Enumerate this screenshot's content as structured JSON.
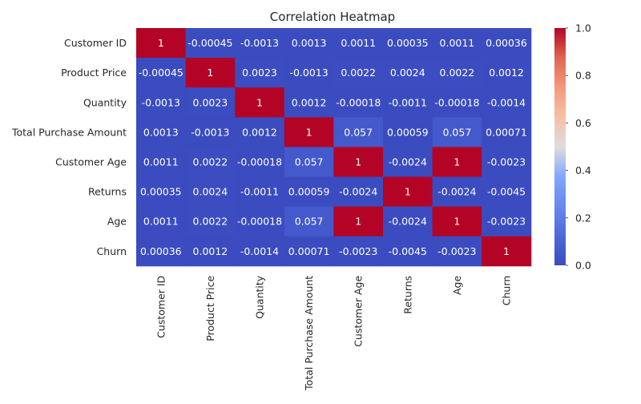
{
  "chart_data": {
    "type": "heatmap",
    "title": "Correlation Heatmap",
    "xlabel": "",
    "ylabel": "",
    "row_labels": [
      "Customer ID",
      "Product Price",
      "Quantity",
      "Total Purchase Amount",
      "Customer Age",
      "Returns",
      "Age",
      "Churn"
    ],
    "col_labels": [
      "Customer ID",
      "Product Price",
      "Quantity",
      "Total Purchase Amount",
      "Customer Age",
      "Returns",
      "Age",
      "Churn"
    ],
    "values": [
      [
        1,
        -0.00045,
        -0.0013,
        0.0013,
        0.0011,
        0.00035,
        0.0011,
        0.00036
      ],
      [
        -0.00045,
        1,
        0.0023,
        -0.0013,
        0.0022,
        0.0024,
        0.0022,
        0.0012
      ],
      [
        -0.0013,
        0.0023,
        1,
        0.0012,
        -0.00018,
        -0.0011,
        -0.00018,
        -0.0014
      ],
      [
        0.0013,
        -0.0013,
        0.0012,
        1,
        0.057,
        0.00059,
        0.057,
        0.00071
      ],
      [
        0.0011,
        0.0022,
        -0.00018,
        0.057,
        1,
        -0.0024,
        1,
        -0.0023
      ],
      [
        0.00035,
        0.0024,
        -0.0011,
        0.00059,
        -0.0024,
        1,
        -0.0024,
        -0.0045
      ],
      [
        0.0011,
        0.0022,
        -0.00018,
        0.057,
        1,
        -0.0024,
        1,
        -0.0023
      ],
      [
        0.00036,
        0.0012,
        -0.0014,
        0.00071,
        -0.0023,
        -0.0045,
        -0.0023,
        1
      ]
    ],
    "cell_labels": [
      [
        "1",
        "-0.00045",
        "-0.0013",
        "0.0013",
        "0.0011",
        "0.00035",
        "0.0011",
        "0.00036"
      ],
      [
        "-0.00045",
        "1",
        "0.0023",
        "-0.0013",
        "0.0022",
        "0.0024",
        "0.0022",
        "0.0012"
      ],
      [
        "-0.0013",
        "0.0023",
        "1",
        "0.0012",
        "-0.00018",
        "-0.0011",
        "-0.00018",
        "-0.0014"
      ],
      [
        "0.0013",
        "-0.0013",
        "0.0012",
        "1",
        "0.057",
        "0.00059",
        "0.057",
        "0.00071"
      ],
      [
        "0.0011",
        "0.0022",
        "-0.00018",
        "0.057",
        "1",
        "-0.0024",
        "1",
        "-0.0023"
      ],
      [
        "0.00035",
        "0.0024",
        "-0.0011",
        "0.00059",
        "-0.0024",
        "1",
        "-0.0024",
        "-0.0045"
      ],
      [
        "0.0011",
        "0.0022",
        "-0.00018",
        "0.057",
        "1",
        "-0.0024",
        "1",
        "-0.0023"
      ],
      [
        "0.00036",
        "0.0012",
        "-0.0014",
        "0.00071",
        "-0.0023",
        "-0.0045",
        "-0.0023",
        "1"
      ]
    ],
    "colormap": "coolwarm",
    "vmin": 0.0,
    "vmax": 1.0,
    "colorbar_ticks": [
      0.0,
      0.2,
      0.4,
      0.6,
      0.8,
      1.0
    ],
    "colorbar_tick_labels": [
      "0.0",
      "0.2",
      "0.4",
      "0.6",
      "0.8",
      "1.0"
    ],
    "colors": {
      "low": "#3b4cc0",
      "mid": "#dddddd",
      "high": "#b40426",
      "annotation_text": "#ffffff",
      "label_text": "#262626"
    }
  }
}
